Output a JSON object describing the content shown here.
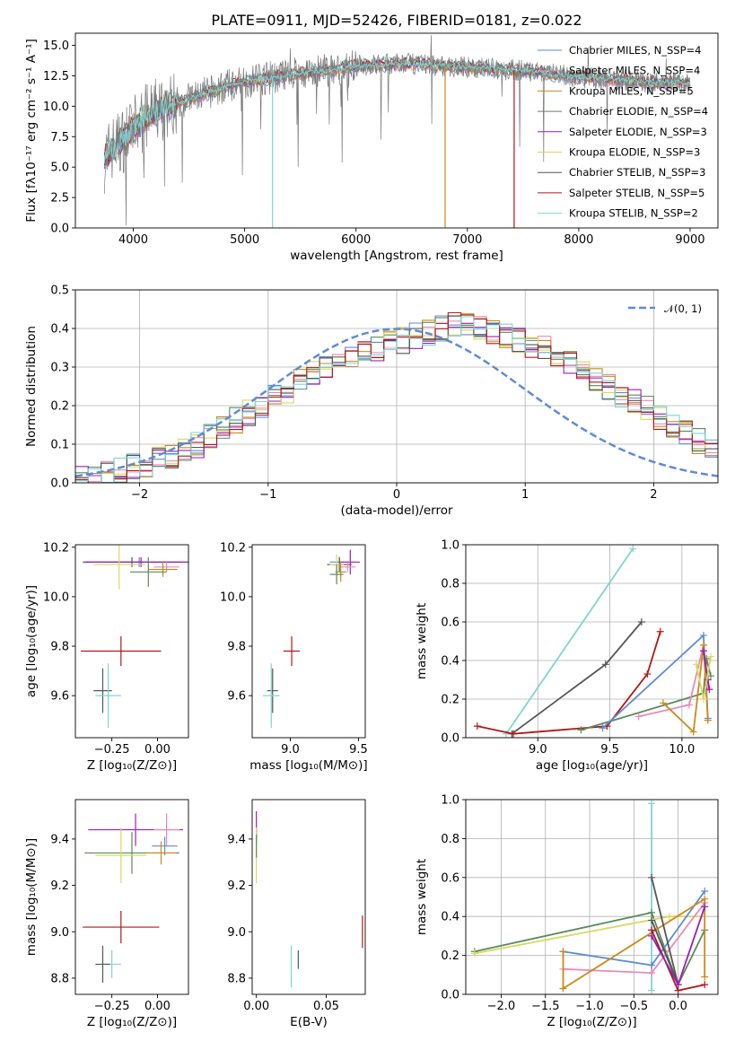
{
  "chart_data": [
    {
      "id": "spectrum",
      "type": "line",
      "title": "PLATE=0911, MJD=52426, FIBERID=0181, z=0.022",
      "xlabel": "wavelength [Angstrom, rest frame]",
      "ylabel": "Flux [fλ10⁻¹⁷ erg cm⁻² s⁻¹ A⁻¹]",
      "xlim": [
        3480,
        9250
      ],
      "ylim": [
        0,
        16
      ],
      "xticks": [
        4000,
        5000,
        6000,
        7000,
        8000,
        9000
      ],
      "yticks": [
        0.0,
        2.5,
        5.0,
        7.5,
        10.0,
        12.5,
        15.0
      ],
      "grid": false,
      "legend": "right",
      "continuum": {
        "x": [
          3740,
          3800,
          3900,
          4000,
          4100,
          4200,
          4300,
          4500,
          4700,
          4900,
          5000,
          5200,
          5500,
          5800,
          6000,
          6200,
          6500,
          6800,
          7000,
          7200,
          7500,
          7800,
          8000,
          8300,
          8600,
          9000
        ],
        "y": [
          5.6,
          6.5,
          7.2,
          8.1,
          9.0,
          9.6,
          10.0,
          10.6,
          11.2,
          11.8,
          12.0,
          12.3,
          12.7,
          13.0,
          13.3,
          13.4,
          13.5,
          13.3,
          13.2,
          13.1,
          12.9,
          12.6,
          12.4,
          12.2,
          12.0,
          11.9
        ]
      },
      "spikes": [
        {
          "x": 5250,
          "y": 0,
          "series": "Kroupa STELIB, N_SSP=2"
        },
        {
          "x": 6800,
          "y": 0,
          "series": "Kroupa MILES, N_SSP=5"
        },
        {
          "x": 7420,
          "y": 0,
          "series": "Salpeter STELIB, N_SSP=5"
        }
      ],
      "series": [
        {
          "name": "Chabrier MILES, N_SSP=4",
          "color": "#5e8bd6"
        },
        {
          "name": "Salpeter MILES, N_SSP=4",
          "color": "#e88ab8"
        },
        {
          "name": "Kroupa MILES, N_SSP=5",
          "color": "#c88a1a"
        },
        {
          "name": "Chabrier ELODIE, N_SSP=4",
          "color": "#5a8a5a"
        },
        {
          "name": "Salpeter ELODIE, N_SSP=3",
          "color": "#9a1fb8"
        },
        {
          "name": "Kroupa ELODIE, N_SSP=3",
          "color": "#d8d860"
        },
        {
          "name": "Chabrier STELIB, N_SSP=3",
          "color": "#555555"
        },
        {
          "name": "Salpeter STELIB, N_SSP=5",
          "color": "#b01818"
        },
        {
          "name": "Kroupa STELIB, N_SSP=2",
          "color": "#7fd4d4"
        }
      ]
    },
    {
      "id": "residuals",
      "type": "bar",
      "xlabel": "(data-model)/error",
      "ylabel": "Normed distribution",
      "xlim": [
        -2.5,
        2.5
      ],
      "ylim": [
        0,
        0.5
      ],
      "xticks": [
        -2,
        -1,
        0,
        1,
        2
      ],
      "yticks": [
        0.0,
        0.1,
        0.2,
        0.3,
        0.4,
        0.5
      ],
      "grid": true,
      "legend": "top-right",
      "legend_label": "𝒩(0, 1)",
      "reference_color": "#5e8bd6",
      "bin_width": 0.1,
      "histogram_base": [
        0.018,
        0.02,
        0.025,
        0.03,
        0.04,
        0.05,
        0.06,
        0.07,
        0.085,
        0.1,
        0.12,
        0.14,
        0.16,
        0.18,
        0.2,
        0.22,
        0.24,
        0.26,
        0.28,
        0.3,
        0.32,
        0.33,
        0.34,
        0.35,
        0.36,
        0.37,
        0.38,
        0.39,
        0.4,
        0.41,
        0.41,
        0.4,
        0.39,
        0.38,
        0.37,
        0.36,
        0.35,
        0.33,
        0.31,
        0.29,
        0.27,
        0.25,
        0.23,
        0.21,
        0.19,
        0.17,
        0.15,
        0.13,
        0.11,
        0.09
      ]
    },
    {
      "id": "age-vs-z",
      "type": "scatter",
      "xlabel": "Z [log₁₀(Z/Z⊙)]",
      "ylabel": "age  [log₁₀(age/yr)]",
      "xlim": [
        -0.45,
        0.17
      ],
      "ylim": [
        9.43,
        10.21
      ],
      "xticks": [
        -0.25,
        0.0
      ],
      "xtick_labels": [
        "−0.25",
        "0.00"
      ],
      "yticks": [
        9.6,
        9.8,
        10.0,
        10.2
      ],
      "ytick_labels": [
        "9.6",
        "9.8",
        "10.0",
        "10.2"
      ],
      "grid": false,
      "points": [
        {
          "x": -0.1,
          "y": 10.14,
          "xerr": 0.3,
          "yerr": 0.02,
          "color": "#5e8bd6"
        },
        {
          "x": -0.14,
          "y": 10.14,
          "xerr": 0.27,
          "yerr": 0.02,
          "color": "#555555"
        },
        {
          "x": -0.09,
          "y": 10.14,
          "xerr": 0.31,
          "yerr": 0.02,
          "color": "#9a1fb8"
        },
        {
          "x": -0.21,
          "y": 10.13,
          "xerr": 0.14,
          "yerr": 0.1,
          "color": "#d8d860"
        },
        {
          "x": 0.05,
          "y": 10.12,
          "xerr": 0.07,
          "yerr": 0.02,
          "color": "#e88ab8"
        },
        {
          "x": 0.03,
          "y": 10.11,
          "xerr": 0.08,
          "yerr": 0.03,
          "color": "#c88a1a"
        },
        {
          "x": -0.05,
          "y": 10.1,
          "xerr": 0.1,
          "yerr": 0.06,
          "color": "#5a8a5a"
        },
        {
          "x": -0.2,
          "y": 9.78,
          "xerr": 0.22,
          "yerr": 0.06,
          "color": "#b01818"
        },
        {
          "x": -0.3,
          "y": 9.62,
          "xerr": 0.05,
          "yerr": 0.09,
          "color": "#555555"
        },
        {
          "x": -0.27,
          "y": 9.6,
          "xerr": 0.07,
          "yerr": 0.13,
          "color": "#7fd4d4"
        }
      ]
    },
    {
      "id": "age-vs-mass",
      "type": "scatter",
      "xlabel": "mass [log₁₀(M/M⊙)]",
      "ylabel": "",
      "xlim": [
        8.72,
        9.55
      ],
      "ylim": [
        9.43,
        10.21
      ],
      "xticks": [
        9.0,
        9.5
      ],
      "xtick_labels": [
        "9.0",
        "9.5"
      ],
      "yticks": [
        9.6,
        9.8,
        10.0,
        10.2
      ],
      "ytick_labels": [
        "9.6",
        "9.8",
        "10.0",
        "10.2"
      ],
      "grid": false,
      "points": [
        {
          "x": 9.36,
          "y": 10.14,
          "xerr": 0.07,
          "yerr": 0.02,
          "color": "#5e8bd6"
        },
        {
          "x": 9.36,
          "y": 10.13,
          "xerr": 0.09,
          "yerr": 0.03,
          "color": "#555555"
        },
        {
          "x": 9.44,
          "y": 10.14,
          "xerr": 0.07,
          "yerr": 0.05,
          "color": "#9a1fb8"
        },
        {
          "x": 9.34,
          "y": 10.13,
          "xerr": 0.05,
          "yerr": 0.04,
          "color": "#d8d860"
        },
        {
          "x": 9.42,
          "y": 10.12,
          "xerr": 0.06,
          "yerr": 0.02,
          "color": "#e88ab8"
        },
        {
          "x": 9.37,
          "y": 10.1,
          "xerr": 0.04,
          "yerr": 0.04,
          "color": "#c88a1a"
        },
        {
          "x": 9.34,
          "y": 10.09,
          "xerr": 0.05,
          "yerr": 0.04,
          "color": "#5a8a5a"
        },
        {
          "x": 9.01,
          "y": 9.78,
          "xerr": 0.06,
          "yerr": 0.06,
          "color": "#b01818"
        },
        {
          "x": 8.87,
          "y": 9.62,
          "xerr": 0.04,
          "yerr": 0.09,
          "color": "#555555"
        },
        {
          "x": 8.86,
          "y": 9.6,
          "xerr": 0.06,
          "yerr": 0.13,
          "color": "#7fd4d4"
        }
      ]
    },
    {
      "id": "weight-vs-age",
      "type": "line",
      "xlabel": "age  [log₁₀(age/yr)]",
      "ylabel": "mass weight",
      "xlim": [
        8.5,
        10.25
      ],
      "ylim": [
        0,
        1
      ],
      "xticks": [
        9.0,
        9.5,
        10.0
      ],
      "xtick_labels": [
        "9.0",
        "9.5",
        "10.0"
      ],
      "yticks": [
        0.0,
        0.2,
        0.4,
        0.6,
        0.8,
        1.0
      ],
      "ytick_labels": [
        "0.0",
        "0.2",
        "0.4",
        "0.6",
        "0.8",
        "1.0"
      ],
      "grid": true,
      "series": [
        {
          "color": "#7fd4d4",
          "x": [
            8.78,
            9.66
          ],
          "y": [
            0.02,
            0.98
          ]
        },
        {
          "color": "#555555",
          "x": [
            8.82,
            9.47,
            9.72
          ],
          "y": [
            0.02,
            0.38,
            0.6
          ]
        },
        {
          "color": "#b01818",
          "x": [
            8.58,
            8.83,
            9.48,
            9.76,
            9.85
          ],
          "y": [
            0.06,
            0.02,
            0.06,
            0.33,
            0.55
          ]
        },
        {
          "color": "#5a8a5a",
          "x": [
            9.3,
            10.15,
            10.17,
            10.2
          ],
          "y": [
            0.04,
            0.23,
            0.41,
            0.32
          ]
        },
        {
          "color": "#5e8bd6",
          "x": [
            9.45,
            10.15,
            10.18
          ],
          "y": [
            0.05,
            0.53,
            0.1
          ]
        },
        {
          "color": "#e88ab8",
          "x": [
            9.7,
            10.05,
            10.15,
            10.18
          ],
          "y": [
            0.11,
            0.17,
            0.48,
            0.26
          ]
        },
        {
          "color": "#c88a1a",
          "x": [
            9.87,
            10.08,
            10.15,
            10.18
          ],
          "y": [
            0.18,
            0.03,
            0.48,
            0.09
          ]
        },
        {
          "color": "#9a1fb8",
          "x": [
            10.15,
            10.18,
            10.19
          ],
          "y": [
            0.45,
            0.3,
            0.25
          ]
        },
        {
          "color": "#d8d860",
          "x": [
            10.1,
            10.15,
            10.2
          ],
          "y": [
            0.38,
            0.2,
            0.42
          ]
        }
      ]
    },
    {
      "id": "mass-vs-z",
      "type": "scatter",
      "xlabel": "Z [log₁₀(Z/Z⊙)]",
      "ylabel": "mass [log₁₀(M/M⊙)]",
      "xlim": [
        -0.45,
        0.17
      ],
      "ylim": [
        8.73,
        9.57
      ],
      "xticks": [
        -0.25,
        0.0
      ],
      "xtick_labels": [
        "−0.25",
        "0.00"
      ],
      "yticks": [
        8.8,
        9.0,
        9.2,
        9.4
      ],
      "ytick_labels": [
        "8.8",
        "9.0",
        "9.2",
        "9.4"
      ],
      "grid": false,
      "points": [
        {
          "x": -0.12,
          "y": 9.44,
          "xerr": 0.26,
          "yerr": 0.07,
          "color": "#9a1fb8"
        },
        {
          "x": 0.05,
          "y": 9.44,
          "xerr": 0.07,
          "yerr": 0.07,
          "color": "#e88ab8"
        },
        {
          "x": 0.04,
          "y": 9.37,
          "xerr": 0.07,
          "yerr": 0.04,
          "color": "#5e8bd6"
        },
        {
          "x": -0.14,
          "y": 9.34,
          "xerr": 0.26,
          "yerr": 0.09,
          "color": "#5a8a5a"
        },
        {
          "x": 0.02,
          "y": 9.34,
          "xerr": 0.08,
          "yerr": 0.05,
          "color": "#c88a1a"
        },
        {
          "x": -0.2,
          "y": 9.33,
          "xerr": 0.14,
          "yerr": 0.12,
          "color": "#d8d860"
        },
        {
          "x": -0.2,
          "y": 9.02,
          "xerr": 0.21,
          "yerr": 0.07,
          "color": "#b01818"
        },
        {
          "x": -0.25,
          "y": 8.86,
          "xerr": 0.05,
          "yerr": 0.06,
          "color": "#7fd4d4"
        },
        {
          "x": -0.3,
          "y": 8.86,
          "xerr": 0.04,
          "yerr": 0.08,
          "color": "#555555"
        }
      ]
    },
    {
      "id": "mass-vs-ebv",
      "type": "scatter",
      "xlabel": "E(B-V)",
      "ylabel": "",
      "xlim": [
        -0.003,
        0.078
      ],
      "ylim": [
        8.73,
        9.57
      ],
      "xticks": [
        0.0,
        0.05
      ],
      "xtick_labels": [
        "0.00",
        "0.05"
      ],
      "yticks": [
        8.8,
        9.0,
        9.2,
        9.4
      ],
      "ytick_labels": [
        "8.8",
        "9.0",
        "9.2",
        "9.4"
      ],
      "grid": false,
      "points": [
        {
          "x": 0.0,
          "y": 9.45,
          "yerr": 0.07,
          "color": "#9a1fb8"
        },
        {
          "x": 0.0,
          "y": 9.33,
          "yerr": 0.12,
          "color": "#d8d860"
        },
        {
          "x": 0.0,
          "y": 9.37,
          "yerr": 0.05,
          "color": "#5a8a5a"
        },
        {
          "x": 0.076,
          "y": 9.0,
          "yerr": 0.07,
          "color": "#b01818"
        },
        {
          "x": 0.025,
          "y": 8.85,
          "yerr": 0.09,
          "color": "#7fd4d4"
        },
        {
          "x": 0.03,
          "y": 8.88,
          "yerr": 0.04,
          "color": "#555555"
        }
      ]
    },
    {
      "id": "weight-vs-z",
      "type": "line",
      "xlabel": "Z [log₁₀(Z/Z⊙)]",
      "ylabel": "mass weight",
      "xlim": [
        -2.4,
        0.45
      ],
      "ylim": [
        0,
        1
      ],
      "xticks": [
        -2.0,
        -1.5,
        -1.0,
        -0.5,
        0.0
      ],
      "xtick_labels": [
        "−2.0",
        "−1.5",
        "−1.0",
        "−0.5",
        "0.0"
      ],
      "yticks": [
        0.0,
        0.2,
        0.4,
        0.6,
        0.8,
        1.0
      ],
      "ytick_labels": [
        "0.0",
        "0.2",
        "0.4",
        "0.6",
        "0.8",
        "1.0"
      ],
      "grid": true,
      "series": [
        {
          "color": "#7fd4d4",
          "x": [
            -0.3,
            -0.3
          ],
          "y": [
            0.02,
            0.98
          ]
        },
        {
          "color": "#5a8a5a",
          "x": [
            -2.3,
            -0.3,
            0.0,
            0.3
          ],
          "y": [
            0.22,
            0.42,
            0.05,
            0.33
          ]
        },
        {
          "color": "#d8d860",
          "x": [
            -2.3,
            -0.1,
            0.3
          ],
          "y": [
            0.21,
            0.4,
            0.4
          ]
        },
        {
          "color": "#5e8bd6",
          "x": [
            -1.3,
            -0.3,
            0.3
          ],
          "y": [
            0.22,
            0.15,
            0.53
          ]
        },
        {
          "color": "#e88ab8",
          "x": [
            -1.3,
            -0.3,
            0.3
          ],
          "y": [
            0.13,
            0.11,
            0.47
          ]
        },
        {
          "color": "#c88a1a",
          "x": [
            -1.3,
            -1.3,
            0.3,
            0.3
          ],
          "y": [
            0.22,
            0.03,
            0.49,
            0.09
          ]
        },
        {
          "color": "#555555",
          "x": [
            -0.3,
            0.0,
            -0.3
          ],
          "y": [
            0.6,
            0.05,
            0.38
          ]
        },
        {
          "color": "#b01818",
          "x": [
            -0.3,
            0.0,
            0.3
          ],
          "y": [
            0.33,
            0.02,
            0.05
          ]
        },
        {
          "color": "#9a1fb8",
          "x": [
            -0.3,
            0.0,
            0.3
          ],
          "y": [
            0.3,
            0.05,
            0.45
          ]
        }
      ]
    }
  ]
}
